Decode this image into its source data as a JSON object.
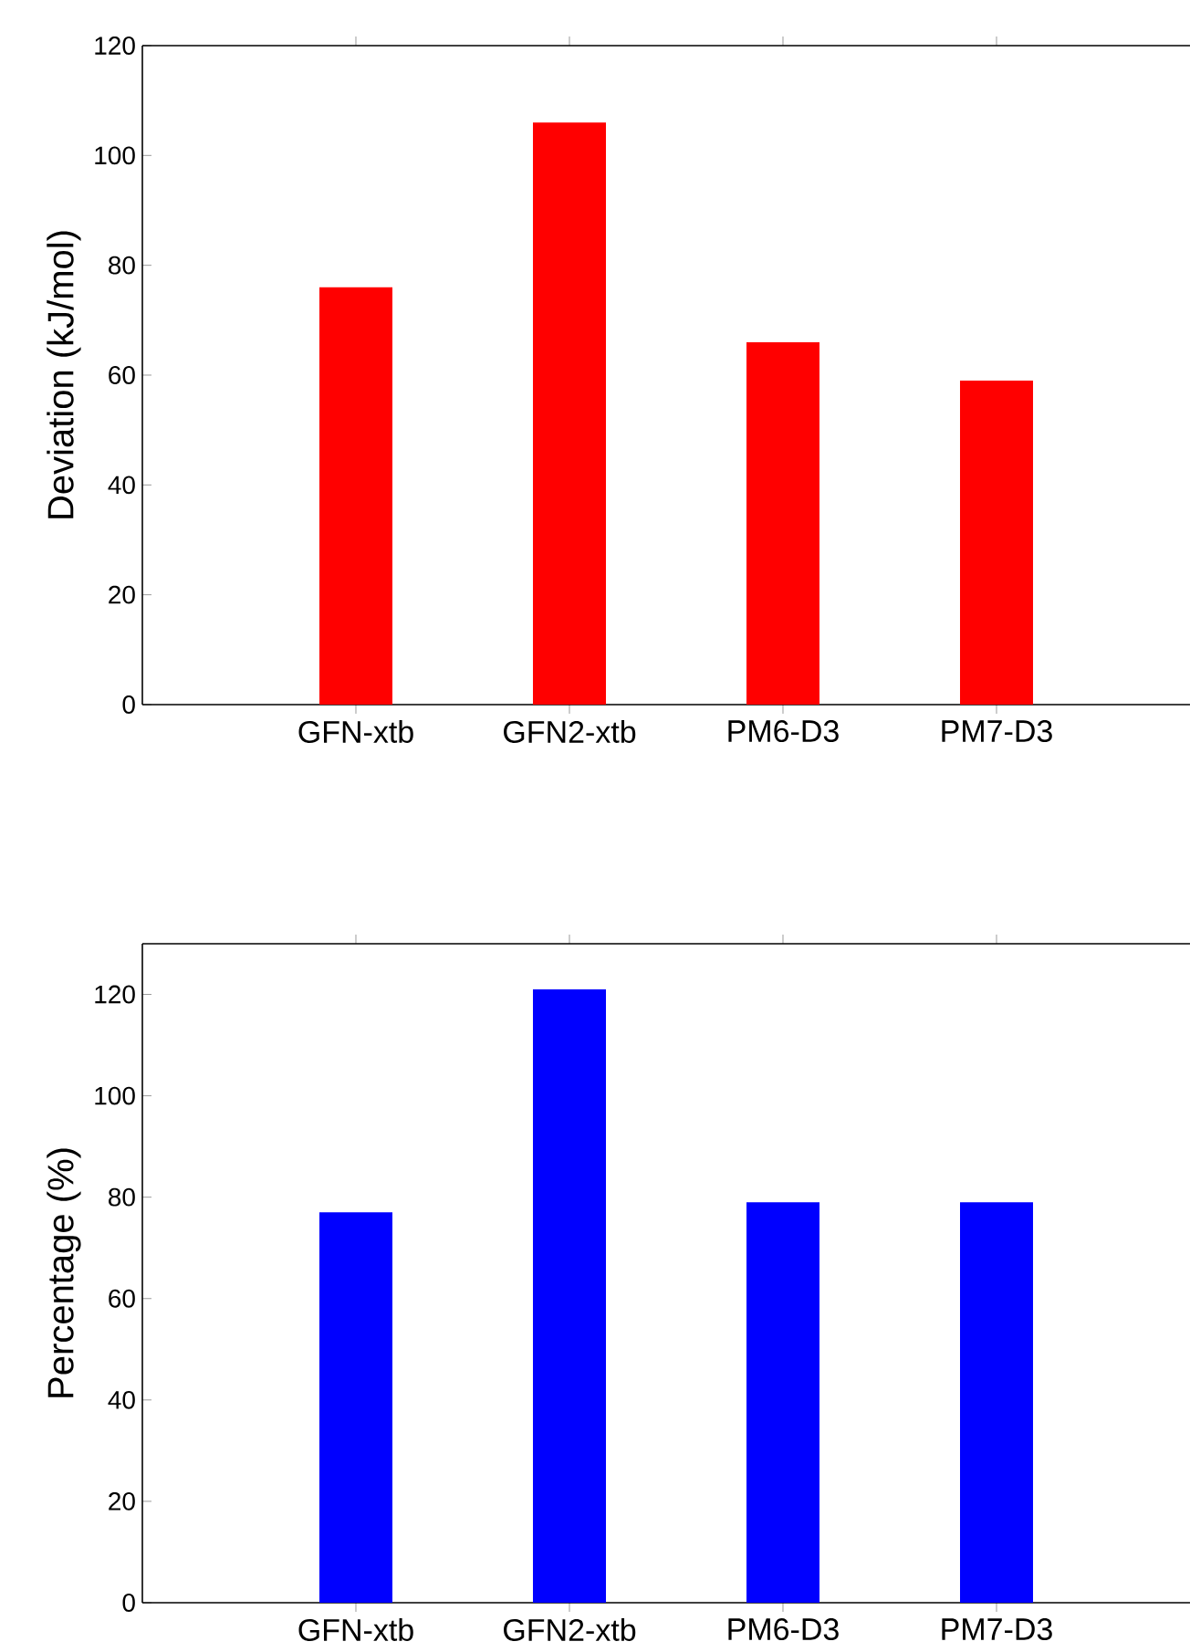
{
  "chart_data": [
    {
      "type": "bar",
      "ylabel": "Deviation (kJ/mol)",
      "categories": [
        "GFN-xtb",
        "GFN2-xtb",
        "PM6-D3",
        "PM7-D3"
      ],
      "values": [
        76,
        106,
        66,
        59
      ],
      "color": "#ff0000",
      "ylim": [
        0,
        120
      ],
      "yticks": [
        0,
        20,
        40,
        60,
        80,
        100,
        120
      ]
    },
    {
      "type": "bar",
      "ylabel": "Percentage (%)",
      "categories": [
        "GFN-xtb",
        "GFN2-xtb",
        "PM6-D3",
        "PM7-D3"
      ],
      "values": [
        77,
        121,
        79,
        79
      ],
      "color": "#0000ff",
      "ylim": [
        0,
        130
      ],
      "yticks": [
        0,
        20,
        40,
        60,
        80,
        100,
        120
      ]
    }
  ]
}
